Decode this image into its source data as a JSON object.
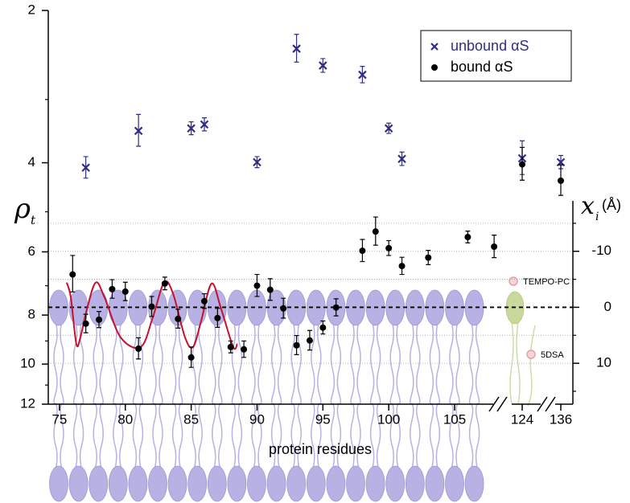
{
  "chart_data": {
    "type": "scatter",
    "x_label": "protein residues",
    "y_label": "ρ",
    "y_label_subscript": "t",
    "y2_label": "x",
    "y2_label_subscript": "i",
    "y2_label_unit": "(Å)",
    "xlim": [
      74.15,
      136.6
    ],
    "xticks": [
      75,
      80,
      85,
      90,
      95,
      100,
      105,
      124,
      136
    ],
    "ylim": [
      2,
      12
    ],
    "y_scale": "log",
    "y_inverted": true,
    "yticks": [
      2,
      4,
      6,
      8,
      10,
      12
    ],
    "yminorticks": [
      3,
      5,
      7,
      9,
      11
    ],
    "y2lim": [
      -19,
      17.3
    ],
    "y2ticks": [
      -10,
      0,
      10
    ],
    "y2minorticks": [
      -15,
      -5,
      5,
      15
    ],
    "y2grid": true,
    "y2_zero_line": true,
    "legend": "upper right",
    "series": [
      {
        "name": "unbound αS",
        "color": "#2f2c8a",
        "marker": "x",
        "x": [
          77,
          81,
          85,
          86,
          90,
          93,
          95,
          98,
          100,
          101,
          124,
          136
        ],
        "values": [
          4.09,
          3.46,
          3.42,
          3.36,
          3.99,
          2.38,
          2.57,
          2.68,
          3.42,
          3.93,
          3.92,
          3.99
        ],
        "errors": [
          0.2,
          0.25,
          0.1,
          0.1,
          0.1,
          0.15,
          0.08,
          0.1,
          0.08,
          0.12,
          0.3,
          0.12
        ]
      },
      {
        "name": "bound αS",
        "color": "#000000",
        "marker": "dot",
        "x": [
          76,
          77,
          78,
          79,
          80,
          81,
          82,
          83,
          84,
          85,
          86,
          87,
          88,
          89,
          90,
          91,
          92,
          93,
          94,
          95,
          96,
          98,
          99,
          100,
          101,
          103,
          106,
          108,
          124,
          136
        ],
        "values": [
          6.65,
          8.32,
          8.17,
          7.11,
          7.19,
          9.32,
          7.7,
          6.93,
          8.14,
          9.7,
          7.51,
          8.11,
          9.25,
          9.35,
          7.0,
          7.13,
          7.76,
          9.18,
          8.98,
          8.47,
          7.73,
          5.97,
          5.47,
          5.9,
          6.4,
          6.16,
          5.61,
          5.86,
          4.03,
          4.34
        ],
        "errors": [
          0.55,
          0.35,
          0.3,
          0.3,
          0.3,
          0.45,
          0.35,
          0.2,
          0.35,
          0.45,
          0.25,
          0.35,
          0.25,
          0.35,
          0.35,
          0.35,
          0.35,
          0.4,
          0.4,
          0.25,
          0.3,
          0.3,
          0.35,
          0.2,
          0.25,
          0.2,
          0.15,
          0.3,
          0.3,
          0.3
        ]
      }
    ],
    "fit": {
      "color": "#c8102e",
      "x": [
        75.55,
        75.86,
        76.28,
        76.59,
        77.08,
        77.75,
        78.42,
        79.64,
        81.17,
        82.09,
        82.94,
        83.61,
        84.53,
        85.14,
        85.75,
        86.55,
        87.28,
        88.19,
        88.5
      ],
      "values": [
        6.9,
        7.38,
        9.12,
        8.85,
        7.79,
        6.9,
        7.38,
        8.85,
        9.25,
        8.08,
        6.9,
        7.24,
        8.85,
        9.25,
        8.23,
        6.93,
        7.79,
        9.25,
        9.12
      ]
    },
    "annotations": [
      "TEMPO-PC",
      "5DSA"
    ]
  }
}
